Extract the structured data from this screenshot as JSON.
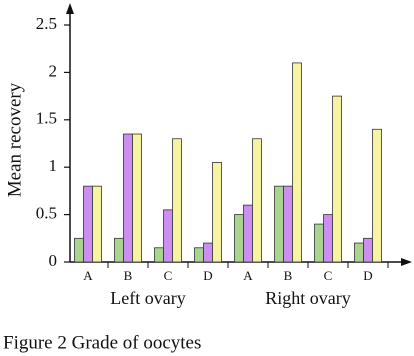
{
  "chart_data": {
    "type": "bar",
    "y_label": "Mean recovery",
    "caption": "Figure 2 Grade of oocytes",
    "categories": [
      "A",
      "B",
      "C",
      "D",
      "A",
      "B",
      "C",
      "D"
    ],
    "group_labels": [
      "Left ovary",
      "Right ovary"
    ],
    "series": [
      {
        "color": "#a9d48f",
        "values": [
          0.25,
          0.25,
          0.15,
          0.15,
          0.5,
          0.8,
          0.4,
          0.2
        ]
      },
      {
        "color": "#cc8ef0",
        "values": [
          0.8,
          1.35,
          0.55,
          0.2,
          0.6,
          0.8,
          0.5,
          0.25
        ]
      },
      {
        "color": "#f6f3a2",
        "values": [
          0.8,
          1.35,
          1.3,
          1.05,
          1.3,
          2.1,
          1.75,
          1.4
        ]
      }
    ],
    "ylim": [
      0,
      2.5
    ],
    "yticks": [
      0,
      0.5,
      1,
      1.5,
      2,
      2.5
    ],
    "grid": false
  }
}
